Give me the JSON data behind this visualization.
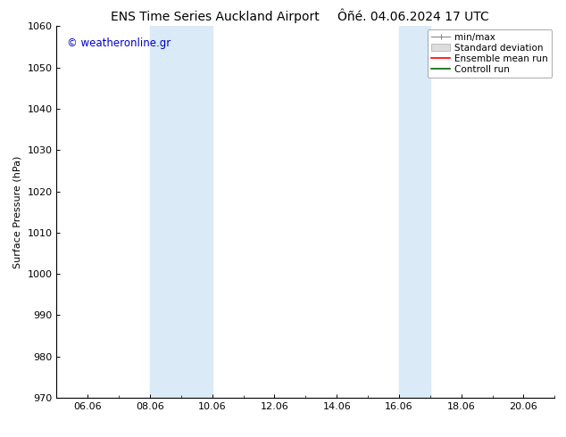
{
  "title_left": "ENS Time Series Auckland Airport",
  "title_right": "Ôñé. 04.06.2024 17 UTC",
  "ylabel": "Surface Pressure (hPa)",
  "ylim": [
    970,
    1060
  ],
  "yticks": [
    970,
    980,
    990,
    1000,
    1010,
    1020,
    1030,
    1040,
    1050,
    1060
  ],
  "xtick_positions": [
    6,
    8,
    10,
    12,
    14,
    16,
    18,
    20
  ],
  "xtick_labels": [
    "06.06",
    "08.06",
    "10.06",
    "12.06",
    "14.06",
    "16.06",
    "18.06",
    "20.06"
  ],
  "xlim": [
    5.0,
    21.0
  ],
  "shaded_bands": [
    {
      "x_start": 8.0,
      "x_end": 10.0
    },
    {
      "x_start": 16.0,
      "x_end": 17.0
    }
  ],
  "shaded_color": "#daeaf7",
  "watermark_text": "© weatheronline.gr",
  "watermark_color": "#0000cc",
  "legend_labels": [
    "min/max",
    "Standard deviation",
    "Ensemble mean run",
    "Controll run"
  ],
  "legend_colors": [
    "#aaaaaa",
    "#cccccc",
    "#ff0000",
    "#008000"
  ],
  "bg_color": "#ffffff",
  "plot_bg_color": "#ffffff",
  "title_fontsize": 10,
  "tick_fontsize": 8,
  "ylabel_fontsize": 8,
  "legend_fontsize": 7.5,
  "watermark_fontsize": 8.5
}
